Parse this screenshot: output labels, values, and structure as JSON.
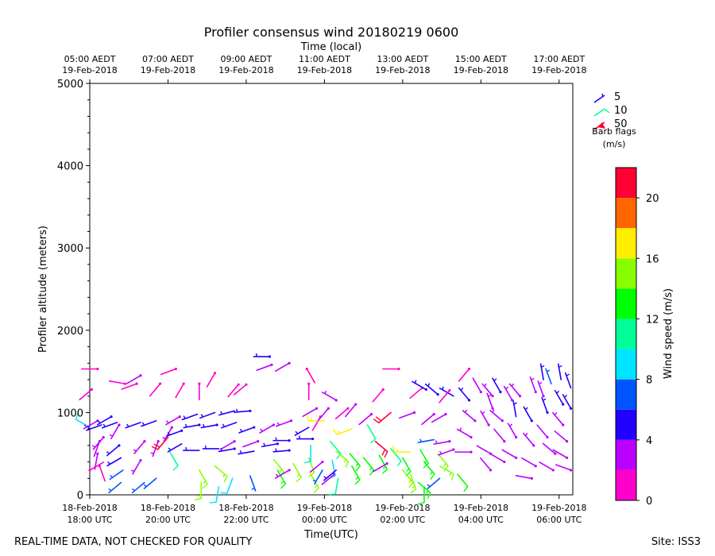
{
  "chart_data": {
    "type": "wind-barb-profile",
    "title": "Profiler consensus wind 20180219 0600",
    "top_axis_label": "Time (local)",
    "top_ticks": [
      {
        "hours": 0,
        "line1": "05:00 AEDT",
        "line2": "19-Feb-2018"
      },
      {
        "hours": 2,
        "line1": "07:00 AEDT",
        "line2": "19-Feb-2018"
      },
      {
        "hours": 4,
        "line1": "09:00 AEDT",
        "line2": "19-Feb-2018"
      },
      {
        "hours": 6,
        "line1": "11:00 AEDT",
        "line2": "19-Feb-2018"
      },
      {
        "hours": 8,
        "line1": "13:00 AEDT",
        "line2": "19-Feb-2018"
      },
      {
        "hours": 10,
        "line1": "15:00 AEDT",
        "line2": "19-Feb-2018"
      },
      {
        "hours": 12,
        "line1": "17:00 AEDT",
        "line2": "19-Feb-2018"
      }
    ],
    "xlabel": "Time(UTC)",
    "bottom_ticks": [
      {
        "hours": 0,
        "line1": "18-Feb-2018",
        "line2": "18:00 UTC"
      },
      {
        "hours": 2,
        "line1": "18-Feb-2018",
        "line2": "20:00 UTC"
      },
      {
        "hours": 4,
        "line1": "18-Feb-2018",
        "line2": "22:00 UTC"
      },
      {
        "hours": 6,
        "line1": "19-Feb-2018",
        "line2": "00:00 UTC"
      },
      {
        "hours": 8,
        "line1": "19-Feb-2018",
        "line2": "02:00 UTC"
      },
      {
        "hours": 10,
        "line1": "19-Feb-2018",
        "line2": "04:00 UTC"
      },
      {
        "hours": 12,
        "line1": "19-Feb-2018",
        "line2": "06:00 UTC"
      }
    ],
    "x_range_hours": [
      0,
      12.35
    ],
    "ylabel": "Profiler altitude (meters)",
    "ylim": [
      0,
      5000
    ],
    "y_ticks": [
      0,
      1000,
      2000,
      3000,
      4000,
      5000
    ],
    "colorbar": {
      "label": "Wind speed (m/s)",
      "range": [
        0,
        22
      ],
      "ticks": [
        0,
        4,
        8,
        12,
        16,
        20
      ],
      "bins": [
        {
          "from": 0,
          "to": 2,
          "color": "#ff00cc"
        },
        {
          "from": 2,
          "to": 4,
          "color": "#bb00ff"
        },
        {
          "from": 4,
          "to": 6,
          "color": "#2200ff"
        },
        {
          "from": 6,
          "to": 8,
          "color": "#0055ff"
        },
        {
          "from": 8,
          "to": 10,
          "color": "#00e5ff"
        },
        {
          "from": 10,
          "to": 12,
          "color": "#00ff99"
        },
        {
          "from": 12,
          "to": 14,
          "color": "#00ff00"
        },
        {
          "from": 14,
          "to": 16,
          "color": "#88ff00"
        },
        {
          "from": 16,
          "to": 18,
          "color": "#ffee00"
        },
        {
          "from": 18,
          "to": 20,
          "color": "#ff6600"
        },
        {
          "from": 20,
          "to": 22,
          "color": "#ff0033"
        }
      ]
    },
    "legend": {
      "title": "Barb flags",
      "units": "(m/s)",
      "entries": [
        {
          "label": "5",
          "color": "#2200ff"
        },
        {
          "label": "10",
          "color": "#00ff99"
        },
        {
          "label": "50",
          "color": "#ff0033"
        }
      ]
    },
    "barbs": [
      {
        "t": 0.0,
        "alt": 820,
        "spd": 9,
        "dir": 300
      },
      {
        "t": 0.0,
        "alt": 300,
        "spd": 1,
        "dir": 60
      },
      {
        "t": 0.05,
        "alt": 1280,
        "spd": 1,
        "dir": 230
      },
      {
        "t": 0.2,
        "alt": 1530,
        "spd": 1,
        "dir": 270
      },
      {
        "t": 0.2,
        "alt": 900,
        "spd": 3,
        "dir": 240
      },
      {
        "t": 0.25,
        "alt": 650,
        "spd": 2,
        "dir": 200
      },
      {
        "t": 0.3,
        "alt": 850,
        "spd": 5,
        "dir": 250
      },
      {
        "t": 0.35,
        "alt": 700,
        "spd": 3,
        "dir": 220
      },
      {
        "t": 0.2,
        "alt": 500,
        "spd": 2,
        "dir": 190
      },
      {
        "t": 0.25,
        "alt": 350,
        "spd": 1,
        "dir": 160
      },
      {
        "t": 0.55,
        "alt": 950,
        "spd": 4,
        "dir": 240
      },
      {
        "t": 0.7,
        "alt": 880,
        "spd": 5,
        "dir": 250
      },
      {
        "t": 0.75,
        "alt": 600,
        "spd": 4,
        "dir": 230
      },
      {
        "t": 0.8,
        "alt": 450,
        "spd": 5,
        "dir": 240
      },
      {
        "t": 0.85,
        "alt": 300,
        "spd": 6,
        "dir": 235
      },
      {
        "t": 0.8,
        "alt": 150,
        "spd": 6,
        "dir": 230
      },
      {
        "t": 0.9,
        "alt": 1350,
        "spd": 1,
        "dir": 280
      },
      {
        "t": 0.75,
        "alt": 850,
        "spd": 3,
        "dir": 210
      },
      {
        "t": 1.2,
        "alt": 1350,
        "spd": 1,
        "dir": 250
      },
      {
        "t": 1.3,
        "alt": 1450,
        "spd": 2,
        "dir": 240
      },
      {
        "t": 1.3,
        "alt": 880,
        "spd": 5,
        "dir": 250
      },
      {
        "t": 1.4,
        "alt": 650,
        "spd": 3,
        "dir": 220
      },
      {
        "t": 1.3,
        "alt": 420,
        "spd": 3,
        "dir": 210
      },
      {
        "t": 1.4,
        "alt": 150,
        "spd": 6,
        "dir": 230
      },
      {
        "t": 1.7,
        "alt": 900,
        "spd": 5,
        "dir": 250
      },
      {
        "t": 1.75,
        "alt": 650,
        "spd": 3,
        "dir": 200
      },
      {
        "t": 1.8,
        "alt": 1350,
        "spd": 1,
        "dir": 220
      },
      {
        "t": 1.7,
        "alt": 200,
        "spd": 6,
        "dir": 230
      },
      {
        "t": 2.0,
        "alt": 700,
        "spd": 21,
        "dir": 220
      },
      {
        "t": 2.05,
        "alt": 520,
        "spd": 10,
        "dir": 150
      },
      {
        "t": 2.1,
        "alt": 820,
        "spd": 3,
        "dir": 210
      },
      {
        "t": 2.2,
        "alt": 1530,
        "spd": 1,
        "dir": 250
      },
      {
        "t": 2.3,
        "alt": 950,
        "spd": 3,
        "dir": 240
      },
      {
        "t": 2.35,
        "alt": 780,
        "spd": 4,
        "dir": 250
      },
      {
        "t": 2.35,
        "alt": 620,
        "spd": 5,
        "dir": 240
      },
      {
        "t": 2.4,
        "alt": 1350,
        "spd": 1,
        "dir": 210
      },
      {
        "t": 2.75,
        "alt": 980,
        "spd": 5,
        "dir": 250
      },
      {
        "t": 2.8,
        "alt": 850,
        "spd": 4,
        "dir": 260
      },
      {
        "t": 2.8,
        "alt": 540,
        "spd": 5,
        "dir": 270
      },
      {
        "t": 2.8,
        "alt": 300,
        "spd": 14,
        "dir": 150
      },
      {
        "t": 2.85,
        "alt": 150,
        "spd": 15,
        "dir": 180
      },
      {
        "t": 2.8,
        "alt": 1350,
        "spd": 1,
        "dir": 180
      },
      {
        "t": 3.2,
        "alt": 1000,
        "spd": 5,
        "dir": 250
      },
      {
        "t": 3.25,
        "alt": 850,
        "spd": 4,
        "dir": 260
      },
      {
        "t": 3.3,
        "alt": 560,
        "spd": 5,
        "dir": 270
      },
      {
        "t": 3.2,
        "alt": 1480,
        "spd": 1,
        "dir": 210
      },
      {
        "t": 3.2,
        "alt": 350,
        "spd": 14,
        "dir": 130
      },
      {
        "t": 3.3,
        "alt": 100,
        "spd": 9,
        "dir": 190
      },
      {
        "t": 3.7,
        "alt": 1020,
        "spd": 5,
        "dir": 255
      },
      {
        "t": 3.75,
        "alt": 880,
        "spd": 5,
        "dir": 250
      },
      {
        "t": 3.7,
        "alt": 560,
        "spd": 4,
        "dir": 260
      },
      {
        "t": 3.65,
        "alt": 200,
        "spd": 9,
        "dir": 200
      },
      {
        "t": 3.8,
        "alt": 1340,
        "spd": 1,
        "dir": 220
      },
      {
        "t": 3.7,
        "alt": 650,
        "spd": 2,
        "dir": 240
      },
      {
        "t": 4.1,
        "alt": 1020,
        "spd": 4,
        "dir": 265
      },
      {
        "t": 4.2,
        "alt": 820,
        "spd": 4,
        "dir": 250
      },
      {
        "t": 4.2,
        "alt": 530,
        "spd": 5,
        "dir": 260
      },
      {
        "t": 4.0,
        "alt": 1340,
        "spd": 1,
        "dir": 230
      },
      {
        "t": 4.1,
        "alt": 230,
        "spd": 6,
        "dir": 160
      },
      {
        "t": 4.3,
        "alt": 650,
        "spd": 2,
        "dir": 250
      },
      {
        "t": 4.6,
        "alt": 1680,
        "spd": 4,
        "dir": 270
      },
      {
        "t": 4.65,
        "alt": 1580,
        "spd": 2,
        "dir": 250
      },
      {
        "t": 4.7,
        "alt": 850,
        "spd": 3,
        "dir": 240
      },
      {
        "t": 4.8,
        "alt": 620,
        "spd": 4,
        "dir": 260
      },
      {
        "t": 4.7,
        "alt": 430,
        "spd": 14,
        "dir": 140
      },
      {
        "t": 4.8,
        "alt": 300,
        "spd": 13,
        "dir": 150
      },
      {
        "t": 5.1,
        "alt": 1600,
        "spd": 2,
        "dir": 240
      },
      {
        "t": 5.15,
        "alt": 900,
        "spd": 3,
        "dir": 250
      },
      {
        "t": 5.1,
        "alt": 660,
        "spd": 4,
        "dir": 270
      },
      {
        "t": 5.1,
        "alt": 540,
        "spd": 4,
        "dir": 265
      },
      {
        "t": 5.1,
        "alt": 300,
        "spd": 3,
        "dir": 240
      },
      {
        "t": 5.2,
        "alt": 380,
        "spd": 14,
        "dir": 150
      },
      {
        "t": 5.55,
        "alt": 1530,
        "spd": 1,
        "dir": 150
      },
      {
        "t": 5.6,
        "alt": 1350,
        "spd": 1,
        "dir": 180
      },
      {
        "t": 5.6,
        "alt": 820,
        "spd": 5,
        "dir": 240
      },
      {
        "t": 5.7,
        "alt": 680,
        "spd": 4,
        "dir": 270
      },
      {
        "t": 5.6,
        "alt": 450,
        "spd": 15,
        "dir": 160
      },
      {
        "t": 5.65,
        "alt": 250,
        "spd": 14,
        "dir": 150
      },
      {
        "t": 5.65,
        "alt": 600,
        "spd": 8,
        "dir": 180
      },
      {
        "t": 5.8,
        "alt": 1050,
        "spd": 2,
        "dir": 240
      },
      {
        "t": 5.9,
        "alt": 950,
        "spd": 1,
        "dir": 210
      },
      {
        "t": 6.0,
        "alt": 900,
        "spd": 17,
        "dir": 270
      },
      {
        "t": 5.95,
        "alt": 400,
        "spd": 2,
        "dir": 230
      },
      {
        "t": 5.95,
        "alt": 300,
        "spd": 6,
        "dir": 210
      },
      {
        "t": 6.1,
        "alt": 1050,
        "spd": 2,
        "dir": 220
      },
      {
        "t": 6.15,
        "alt": 650,
        "spd": 10,
        "dir": 140
      },
      {
        "t": 6.2,
        "alt": 420,
        "spd": 8,
        "dir": 170
      },
      {
        "t": 6.25,
        "alt": 250,
        "spd": 2,
        "dir": 230
      },
      {
        "t": 6.3,
        "alt": 1150,
        "spd": 3,
        "dir": 300
      },
      {
        "t": 6.3,
        "alt": 530,
        "spd": 14,
        "dir": 130
      },
      {
        "t": 6.3,
        "alt": 300,
        "spd": 5,
        "dir": 230
      },
      {
        "t": 6.35,
        "alt": 200,
        "spd": 10,
        "dir": 190
      },
      {
        "t": 6.6,
        "alt": 1050,
        "spd": 1,
        "dir": 230
      },
      {
        "t": 6.7,
        "alt": 800,
        "spd": 17,
        "dir": 250
      },
      {
        "t": 6.65,
        "alt": 500,
        "spd": 13,
        "dir": 140
      },
      {
        "t": 6.7,
        "alt": 350,
        "spd": 13,
        "dir": 150
      },
      {
        "t": 6.8,
        "alt": 1100,
        "spd": 2,
        "dir": 220
      },
      {
        "t": 7.1,
        "alt": 850,
        "spd": 10,
        "dir": 150
      },
      {
        "t": 7.0,
        "alt": 450,
        "spd": 13,
        "dir": 140
      },
      {
        "t": 7.2,
        "alt": 980,
        "spd": 2,
        "dir": 230
      },
      {
        "t": 7.3,
        "alt": 650,
        "spd": 20,
        "dir": 130
      },
      {
        "t": 7.4,
        "alt": 480,
        "spd": 13,
        "dir": 150
      },
      {
        "t": 7.5,
        "alt": 1280,
        "spd": 1,
        "dir": 220
      },
      {
        "t": 7.7,
        "alt": 1000,
        "spd": 21,
        "dir": 230
      },
      {
        "t": 7.6,
        "alt": 380,
        "spd": 2,
        "dir": 240
      },
      {
        "t": 7.7,
        "alt": 560,
        "spd": 10,
        "dir": 140
      },
      {
        "t": 7.9,
        "alt": 1530,
        "spd": 1,
        "dir": 270
      },
      {
        "t": 8.0,
        "alt": 450,
        "spd": 13,
        "dir": 150
      },
      {
        "t": 8.0,
        "alt": 300,
        "spd": 14,
        "dir": 140
      },
      {
        "t": 8.3,
        "alt": 1000,
        "spd": 2,
        "dir": 250
      },
      {
        "t": 8.2,
        "alt": 520,
        "spd": 17,
        "dir": 270
      },
      {
        "t": 8.2,
        "alt": 250,
        "spd": 14,
        "dir": 160
      },
      {
        "t": 8.5,
        "alt": 1300,
        "spd": 1,
        "dir": 230
      },
      {
        "t": 8.6,
        "alt": 1280,
        "spd": 4,
        "dir": 300
      },
      {
        "t": 8.4,
        "alt": 150,
        "spd": 13,
        "dir": 130
      },
      {
        "t": 8.45,
        "alt": 550,
        "spd": 13,
        "dir": 150
      },
      {
        "t": 8.55,
        "alt": 400,
        "spd": 13,
        "dir": 140
      },
      {
        "t": 8.55,
        "alt": 100,
        "spd": 12,
        "dir": 180
      },
      {
        "t": 8.8,
        "alt": 980,
        "spd": 2,
        "dir": 230
      },
      {
        "t": 8.8,
        "alt": 670,
        "spd": 6,
        "dir": 260
      },
      {
        "t": 8.9,
        "alt": 500,
        "spd": 14,
        "dir": 140
      },
      {
        "t": 8.95,
        "alt": 350,
        "spd": 14,
        "dir": 120
      },
      {
        "t": 8.95,
        "alt": 200,
        "spd": 6,
        "dir": 230
      },
      {
        "t": 8.9,
        "alt": 1220,
        "spd": 4,
        "dir": 310
      },
      {
        "t": 9.1,
        "alt": 980,
        "spd": 2,
        "dir": 240
      },
      {
        "t": 9.2,
        "alt": 650,
        "spd": 3,
        "dir": 260
      },
      {
        "t": 9.3,
        "alt": 1200,
        "spd": 5,
        "dir": 300
      },
      {
        "t": 9.3,
        "alt": 550,
        "spd": 3,
        "dir": 250
      },
      {
        "t": 9.4,
        "alt": 250,
        "spd": 12,
        "dir": 140
      },
      {
        "t": 9.2,
        "alt": 1270,
        "spd": 1,
        "dir": 220
      },
      {
        "t": 9.7,
        "alt": 1150,
        "spd": 4,
        "dir": 320
      },
      {
        "t": 9.75,
        "alt": 700,
        "spd": 3,
        "dir": 300
      },
      {
        "t": 9.75,
        "alt": 520,
        "spd": 2,
        "dir": 270
      },
      {
        "t": 9.7,
        "alt": 1530,
        "spd": 1,
        "dir": 220
      },
      {
        "t": 9.85,
        "alt": 900,
        "spd": 3,
        "dir": 310
      },
      {
        "t": 10.0,
        "alt": 1250,
        "spd": 2,
        "dir": 330
      },
      {
        "t": 10.2,
        "alt": 850,
        "spd": 3,
        "dir": 330
      },
      {
        "t": 10.3,
        "alt": 1200,
        "spd": 3,
        "dir": 320
      },
      {
        "t": 10.25,
        "alt": 500,
        "spd": 2,
        "dir": 300
      },
      {
        "t": 10.25,
        "alt": 300,
        "spd": 2,
        "dir": 320
      },
      {
        "t": 10.3,
        "alt": 1050,
        "spd": 3,
        "dir": 340
      },
      {
        "t": 10.5,
        "alt": 1250,
        "spd": 4,
        "dir": 330
      },
      {
        "t": 10.55,
        "alt": 900,
        "spd": 3,
        "dir": 310
      },
      {
        "t": 10.6,
        "alt": 650,
        "spd": 2,
        "dir": 320
      },
      {
        "t": 10.6,
        "alt": 400,
        "spd": 2,
        "dir": 300
      },
      {
        "t": 10.8,
        "alt": 1150,
        "spd": 3,
        "dir": 330
      },
      {
        "t": 10.9,
        "alt": 950,
        "spd": 5,
        "dir": 350
      },
      {
        "t": 10.9,
        "alt": 700,
        "spd": 3,
        "dir": 330
      },
      {
        "t": 10.9,
        "alt": 450,
        "spd": 2,
        "dir": 300
      },
      {
        "t": 11.0,
        "alt": 1200,
        "spd": 3,
        "dir": 320
      },
      {
        "t": 11.3,
        "alt": 900,
        "spd": 4,
        "dir": 330
      },
      {
        "t": 11.4,
        "alt": 1250,
        "spd": 3,
        "dir": 340
      },
      {
        "t": 11.35,
        "alt": 600,
        "spd": 3,
        "dir": 320
      },
      {
        "t": 11.4,
        "alt": 350,
        "spd": 2,
        "dir": 300
      },
      {
        "t": 11.3,
        "alt": 200,
        "spd": 2,
        "dir": 280
      },
      {
        "t": 11.6,
        "alt": 1200,
        "spd": 3,
        "dir": 340
      },
      {
        "t": 11.6,
        "alt": 1400,
        "spd": 5,
        "dir": 350
      },
      {
        "t": 11.7,
        "alt": 1000,
        "spd": 4,
        "dir": 340
      },
      {
        "t": 11.7,
        "alt": 700,
        "spd": 2,
        "dir": 320
      },
      {
        "t": 11.8,
        "alt": 1350,
        "spd": 7,
        "dir": 340
      },
      {
        "t": 11.9,
        "alt": 500,
        "spd": 2,
        "dir": 310
      },
      {
        "t": 11.85,
        "alt": 300,
        "spd": 2,
        "dir": 300
      },
      {
        "t": 12.05,
        "alt": 1400,
        "spd": 5,
        "dir": 350
      },
      {
        "t": 12.1,
        "alt": 1100,
        "spd": 4,
        "dir": 330
      },
      {
        "t": 12.1,
        "alt": 850,
        "spd": 3,
        "dir": 320
      },
      {
        "t": 12.2,
        "alt": 650,
        "spd": 2,
        "dir": 310
      },
      {
        "t": 12.2,
        "alt": 450,
        "spd": 2,
        "dir": 300
      },
      {
        "t": 12.3,
        "alt": 1300,
        "spd": 5,
        "dir": 340
      },
      {
        "t": 12.3,
        "alt": 1050,
        "spd": 4,
        "dir": 330
      },
      {
        "t": 12.3,
        "alt": 300,
        "spd": 2,
        "dir": 290
      }
    ]
  },
  "footer": {
    "left_note": "REAL-TIME DATA, NOT CHECKED FOR QUALITY",
    "site": "Site: ISS3"
  }
}
